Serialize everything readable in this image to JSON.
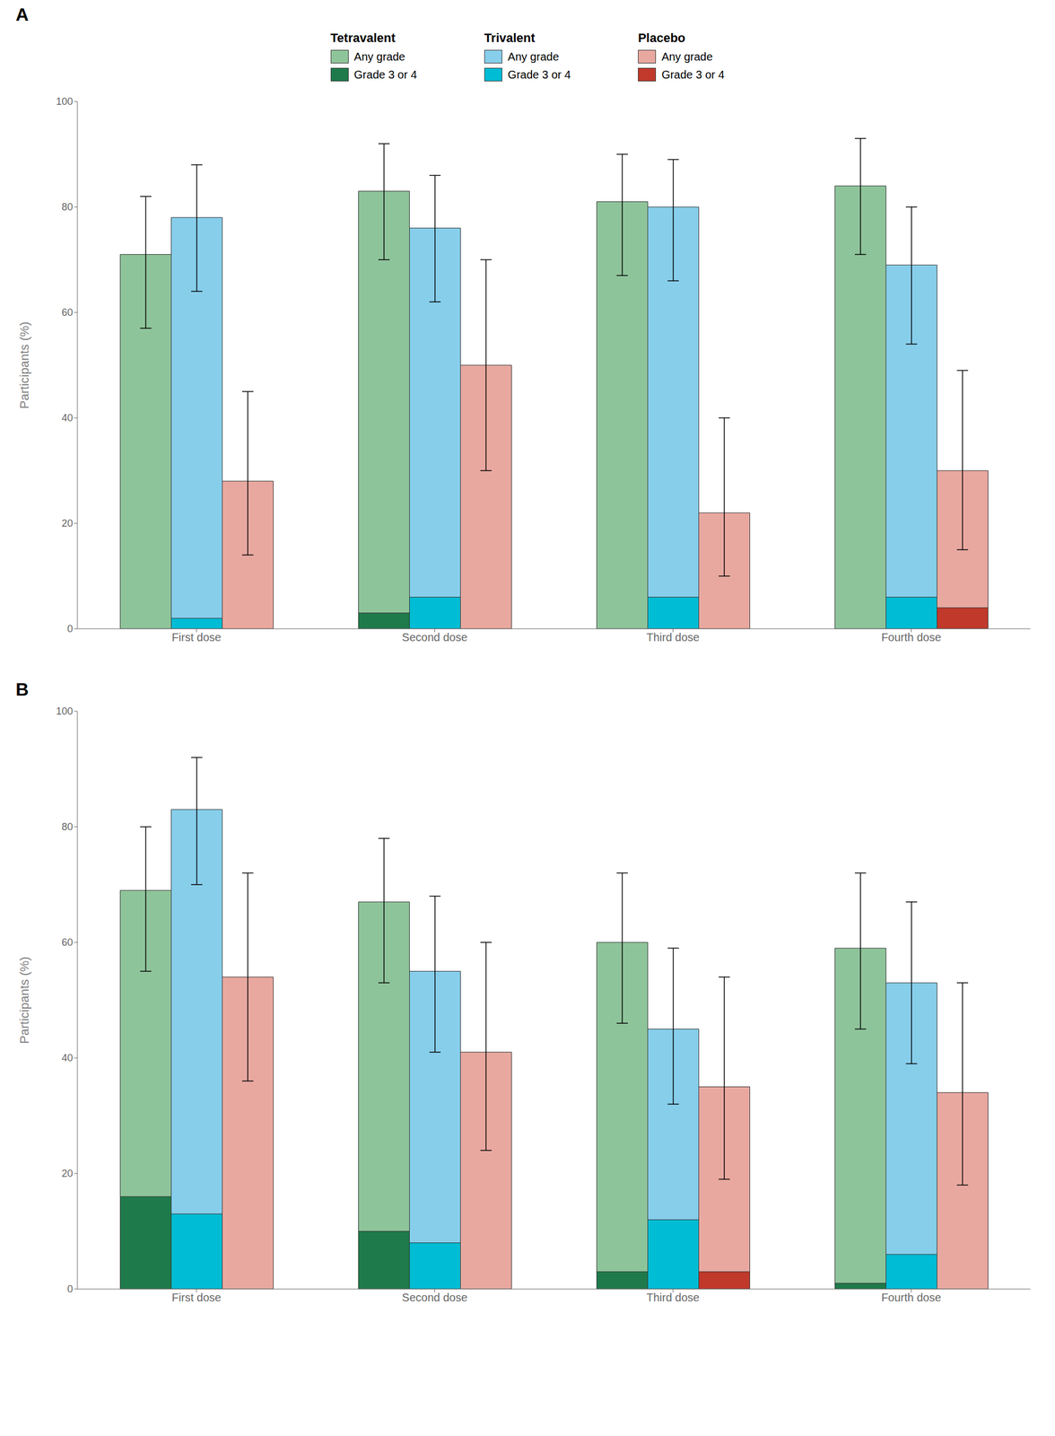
{
  "chart_data": [
    {
      "type": "bar",
      "title": "A",
      "y_label": "Participants (%)",
      "categories": [
        "First dose",
        "Second dose",
        "Third dose",
        "Fourth dose"
      ],
      "ylim": [
        0,
        100
      ],
      "yticks": [
        0,
        20,
        40,
        60,
        80,
        100
      ],
      "legend": "top",
      "series": [
        {
          "group": "Tetravalent",
          "name": "Any grade",
          "color": "#8ec49a",
          "values": [
            71,
            83,
            81,
            84
          ],
          "error_low": [
            57,
            70,
            67,
            71
          ],
          "error_high": [
            82,
            92,
            90,
            93
          ]
        },
        {
          "group": "Tetravalent",
          "name": "Grade 3 or 4",
          "color": "#1e7a4a",
          "values": [
            0,
            3,
            0,
            0
          ]
        },
        {
          "group": "Trivalent",
          "name": "Any grade",
          "color": "#87ceeb",
          "values": [
            78,
            76,
            80,
            69
          ],
          "error_low": [
            64,
            62,
            66,
            54
          ],
          "error_high": [
            88,
            86,
            89,
            80
          ]
        },
        {
          "group": "Trivalent",
          "name": "Grade 3 or 4",
          "color": "#00bcd4",
          "values": [
            2,
            6,
            6,
            6
          ]
        },
        {
          "group": "Placebo",
          "name": "Any grade",
          "color": "#e8a8a0",
          "values": [
            28,
            50,
            22,
            30
          ],
          "error_low": [
            14,
            30,
            10,
            15
          ],
          "error_high": [
            45,
            70,
            40,
            49
          ]
        },
        {
          "group": "Placebo",
          "name": "Grade 3 or 4",
          "color": "#c0392b",
          "values": [
            0,
            0,
            0,
            4
          ]
        }
      ]
    },
    {
      "type": "bar",
      "title": "B",
      "y_label": "Participants (%)",
      "categories": [
        "First dose",
        "Second dose",
        "Third dose",
        "Fourth dose"
      ],
      "ylim": [
        0,
        100
      ],
      "yticks": [
        0,
        20,
        40,
        60,
        80,
        100
      ],
      "series": [
        {
          "group": "Tetravalent",
          "name": "Any grade",
          "color": "#8ec49a",
          "values": [
            69,
            67,
            60,
            59
          ],
          "error_low": [
            55,
            53,
            46,
            45
          ],
          "error_high": [
            80,
            78,
            72,
            72
          ]
        },
        {
          "group": "Tetravalent",
          "name": "Grade 3 or 4",
          "color": "#1e7a4a",
          "values": [
            16,
            10,
            3,
            1
          ]
        },
        {
          "group": "Trivalent",
          "name": "Any grade",
          "color": "#87ceeb",
          "values": [
            83,
            55,
            45,
            53
          ],
          "error_low": [
            70,
            41,
            32,
            39
          ],
          "error_high": [
            92,
            68,
            59,
            67
          ]
        },
        {
          "group": "Trivalent",
          "name": "Grade 3 or 4",
          "color": "#00bcd4",
          "values": [
            13,
            8,
            12,
            6
          ]
        },
        {
          "group": "Placebo",
          "name": "Any grade",
          "color": "#e8a8a0",
          "values": [
            54,
            41,
            35,
            34
          ],
          "error_low": [
            36,
            24,
            19,
            18
          ],
          "error_high": [
            72,
            60,
            54,
            53
          ]
        },
        {
          "group": "Placebo",
          "name": "Grade 3 or 4",
          "color": "#c0392b",
          "values": [
            0,
            0,
            3,
            0
          ]
        }
      ]
    }
  ]
}
